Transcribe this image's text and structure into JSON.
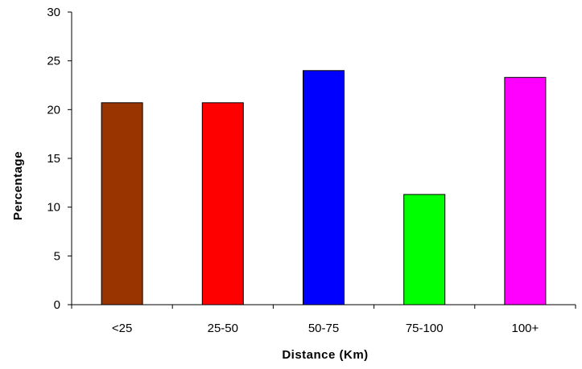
{
  "chart_data": {
    "type": "bar",
    "categories": [
      "<25",
      "25-50",
      "50-75",
      "75-100",
      "100+"
    ],
    "values": [
      20.7,
      20.7,
      24.0,
      11.3,
      23.3
    ],
    "colors": [
      "#993300",
      "#ff0000",
      "#0000ff",
      "#00ff00",
      "#ff00ff"
    ],
    "xlabel": "Distance (Km)",
    "ylabel": "Percentage",
    "ylim": [
      0,
      30
    ],
    "yticks": [
      "0",
      "5",
      "10",
      "15",
      "20",
      "25",
      "30"
    ],
    "grid": false,
    "legend": "none"
  }
}
